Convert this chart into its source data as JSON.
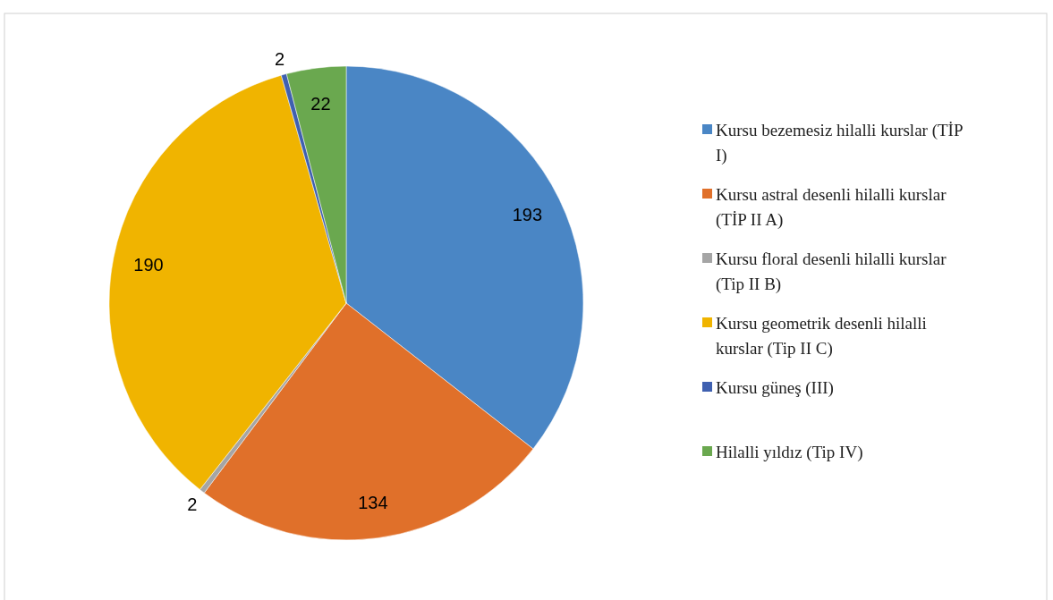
{
  "chart_data": {
    "type": "pie",
    "categories": [
      "Kursu bezemesiz hilalli kurslar (TİP I)",
      "Kursu astral desenli hilalli kurslar (TİP II A)",
      "Kursu floral desenli hilalli kurslar (Tip II B)",
      "Kursu geometrik desenli hilalli kurslar (Tip II C)",
      "Kursu güneş (III)",
      "Hilalli yıldız (Tip IV)"
    ],
    "values": [
      193,
      134,
      2,
      190,
      2,
      22
    ],
    "colors": [
      "#4a86c5",
      "#e0702a",
      "#a5a5a5",
      "#f0b400",
      "#3f60b0",
      "#6aa84f"
    ],
    "data_labels": true,
    "legend": "right"
  }
}
